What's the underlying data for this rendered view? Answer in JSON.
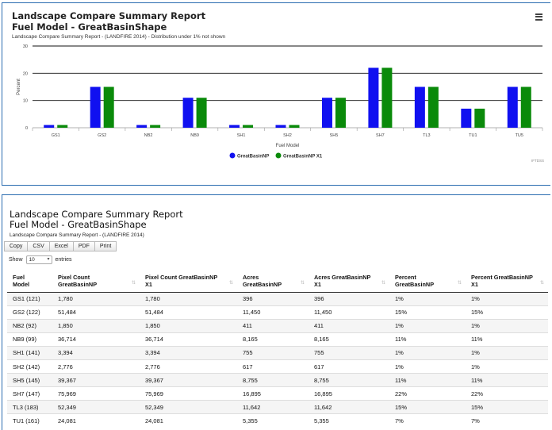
{
  "chart_panel": {
    "title_line1": "Landscape Compare Summary Report",
    "title_line2": "Fuel Model - GreatBasinShape",
    "subtitle": "Landscape Compare Summary Report - (LANDFIRE 2014) - Distribution under 1% not shown",
    "menu_icon": "hamburger-icon",
    "credit": "IFTDSS"
  },
  "chart_data": {
    "type": "bar",
    "title": "Landscape Compare Summary Report Fuel Model - GreatBasinShape",
    "subtitle": "Landscape Compare Summary Report - (LANDFIRE 2014) - Distribution under 1% not shown",
    "xlabel": "Fuel Model",
    "ylabel": "Percent",
    "ylim": [
      0,
      30
    ],
    "yticks": [
      0,
      10,
      20,
      30
    ],
    "categories": [
      "GS1",
      "GS2",
      "NB2",
      "NB9",
      "SH1",
      "SH2",
      "SH5",
      "SH7",
      "TL3",
      "TU1",
      "TU5"
    ],
    "series": [
      {
        "name": "GreatBasinNP",
        "color": "#1010f0",
        "values": [
          1,
          15,
          1,
          11,
          1,
          1,
          11,
          22,
          15,
          7,
          15
        ]
      },
      {
        "name": "GreatBasinNP X1",
        "color": "#0a8a0a",
        "values": [
          1,
          15,
          1,
          11,
          1,
          1,
          11,
          22,
          15,
          7,
          15
        ]
      }
    ],
    "grid": true,
    "legend": "bottom-center"
  },
  "table_panel": {
    "title_line1": "Landscape Compare Summary Report",
    "title_line2": "Fuel Model - GreatBasinShape",
    "subtitle": "Landscape Compare Summary Report - (LANDFIRE 2014)",
    "buttons": {
      "copy": "Copy",
      "csv": "CSV",
      "excel": "Excel",
      "pdf": "PDF",
      "print": "Print"
    },
    "show_label": "Show",
    "show_value": "10",
    "entries_label": "entries",
    "columns": [
      {
        "line1": "Fuel",
        "line2": "Model"
      },
      {
        "line1": "Pixel Count",
        "line2": "GreatBasinNP"
      },
      {
        "line1": "Pixel Count GreatBasinNP",
        "line2": "X1"
      },
      {
        "line1": "Acres",
        "line2": "GreatBasinNP"
      },
      {
        "line1": "Acres GreatBasinNP",
        "line2": "X1"
      },
      {
        "line1": "Percent",
        "line2": "GreatBasinNP"
      },
      {
        "line1": "Percent GreatBasinNP",
        "line2": "X1"
      }
    ],
    "sort_icon": "sort-icon",
    "rows": [
      [
        "GS1 (121)",
        "1,780",
        "1,780",
        "396",
        "396",
        "1%",
        "1%"
      ],
      [
        "GS2 (122)",
        "51,484",
        "51,484",
        "11,450",
        "11,450",
        "15%",
        "15%"
      ],
      [
        "NB2 (92)",
        "1,850",
        "1,850",
        "411",
        "411",
        "1%",
        "1%"
      ],
      [
        "NB9 (99)",
        "36,714",
        "36,714",
        "8,165",
        "8,165",
        "11%",
        "11%"
      ],
      [
        "SH1 (141)",
        "3,394",
        "3,394",
        "755",
        "755",
        "1%",
        "1%"
      ],
      [
        "SH2 (142)",
        "2,776",
        "2,776",
        "617",
        "617",
        "1%",
        "1%"
      ],
      [
        "SH5 (145)",
        "39,367",
        "39,367",
        "8,755",
        "8,755",
        "11%",
        "11%"
      ],
      [
        "SH7 (147)",
        "75,969",
        "75,969",
        "16,895",
        "16,895",
        "22%",
        "22%"
      ],
      [
        "TL3 (183)",
        "52,349",
        "52,349",
        "11,642",
        "11,642",
        "15%",
        "15%"
      ],
      [
        "TU1 (161)",
        "24,081",
        "24,081",
        "5,355",
        "5,355",
        "7%",
        "7%"
      ]
    ]
  }
}
